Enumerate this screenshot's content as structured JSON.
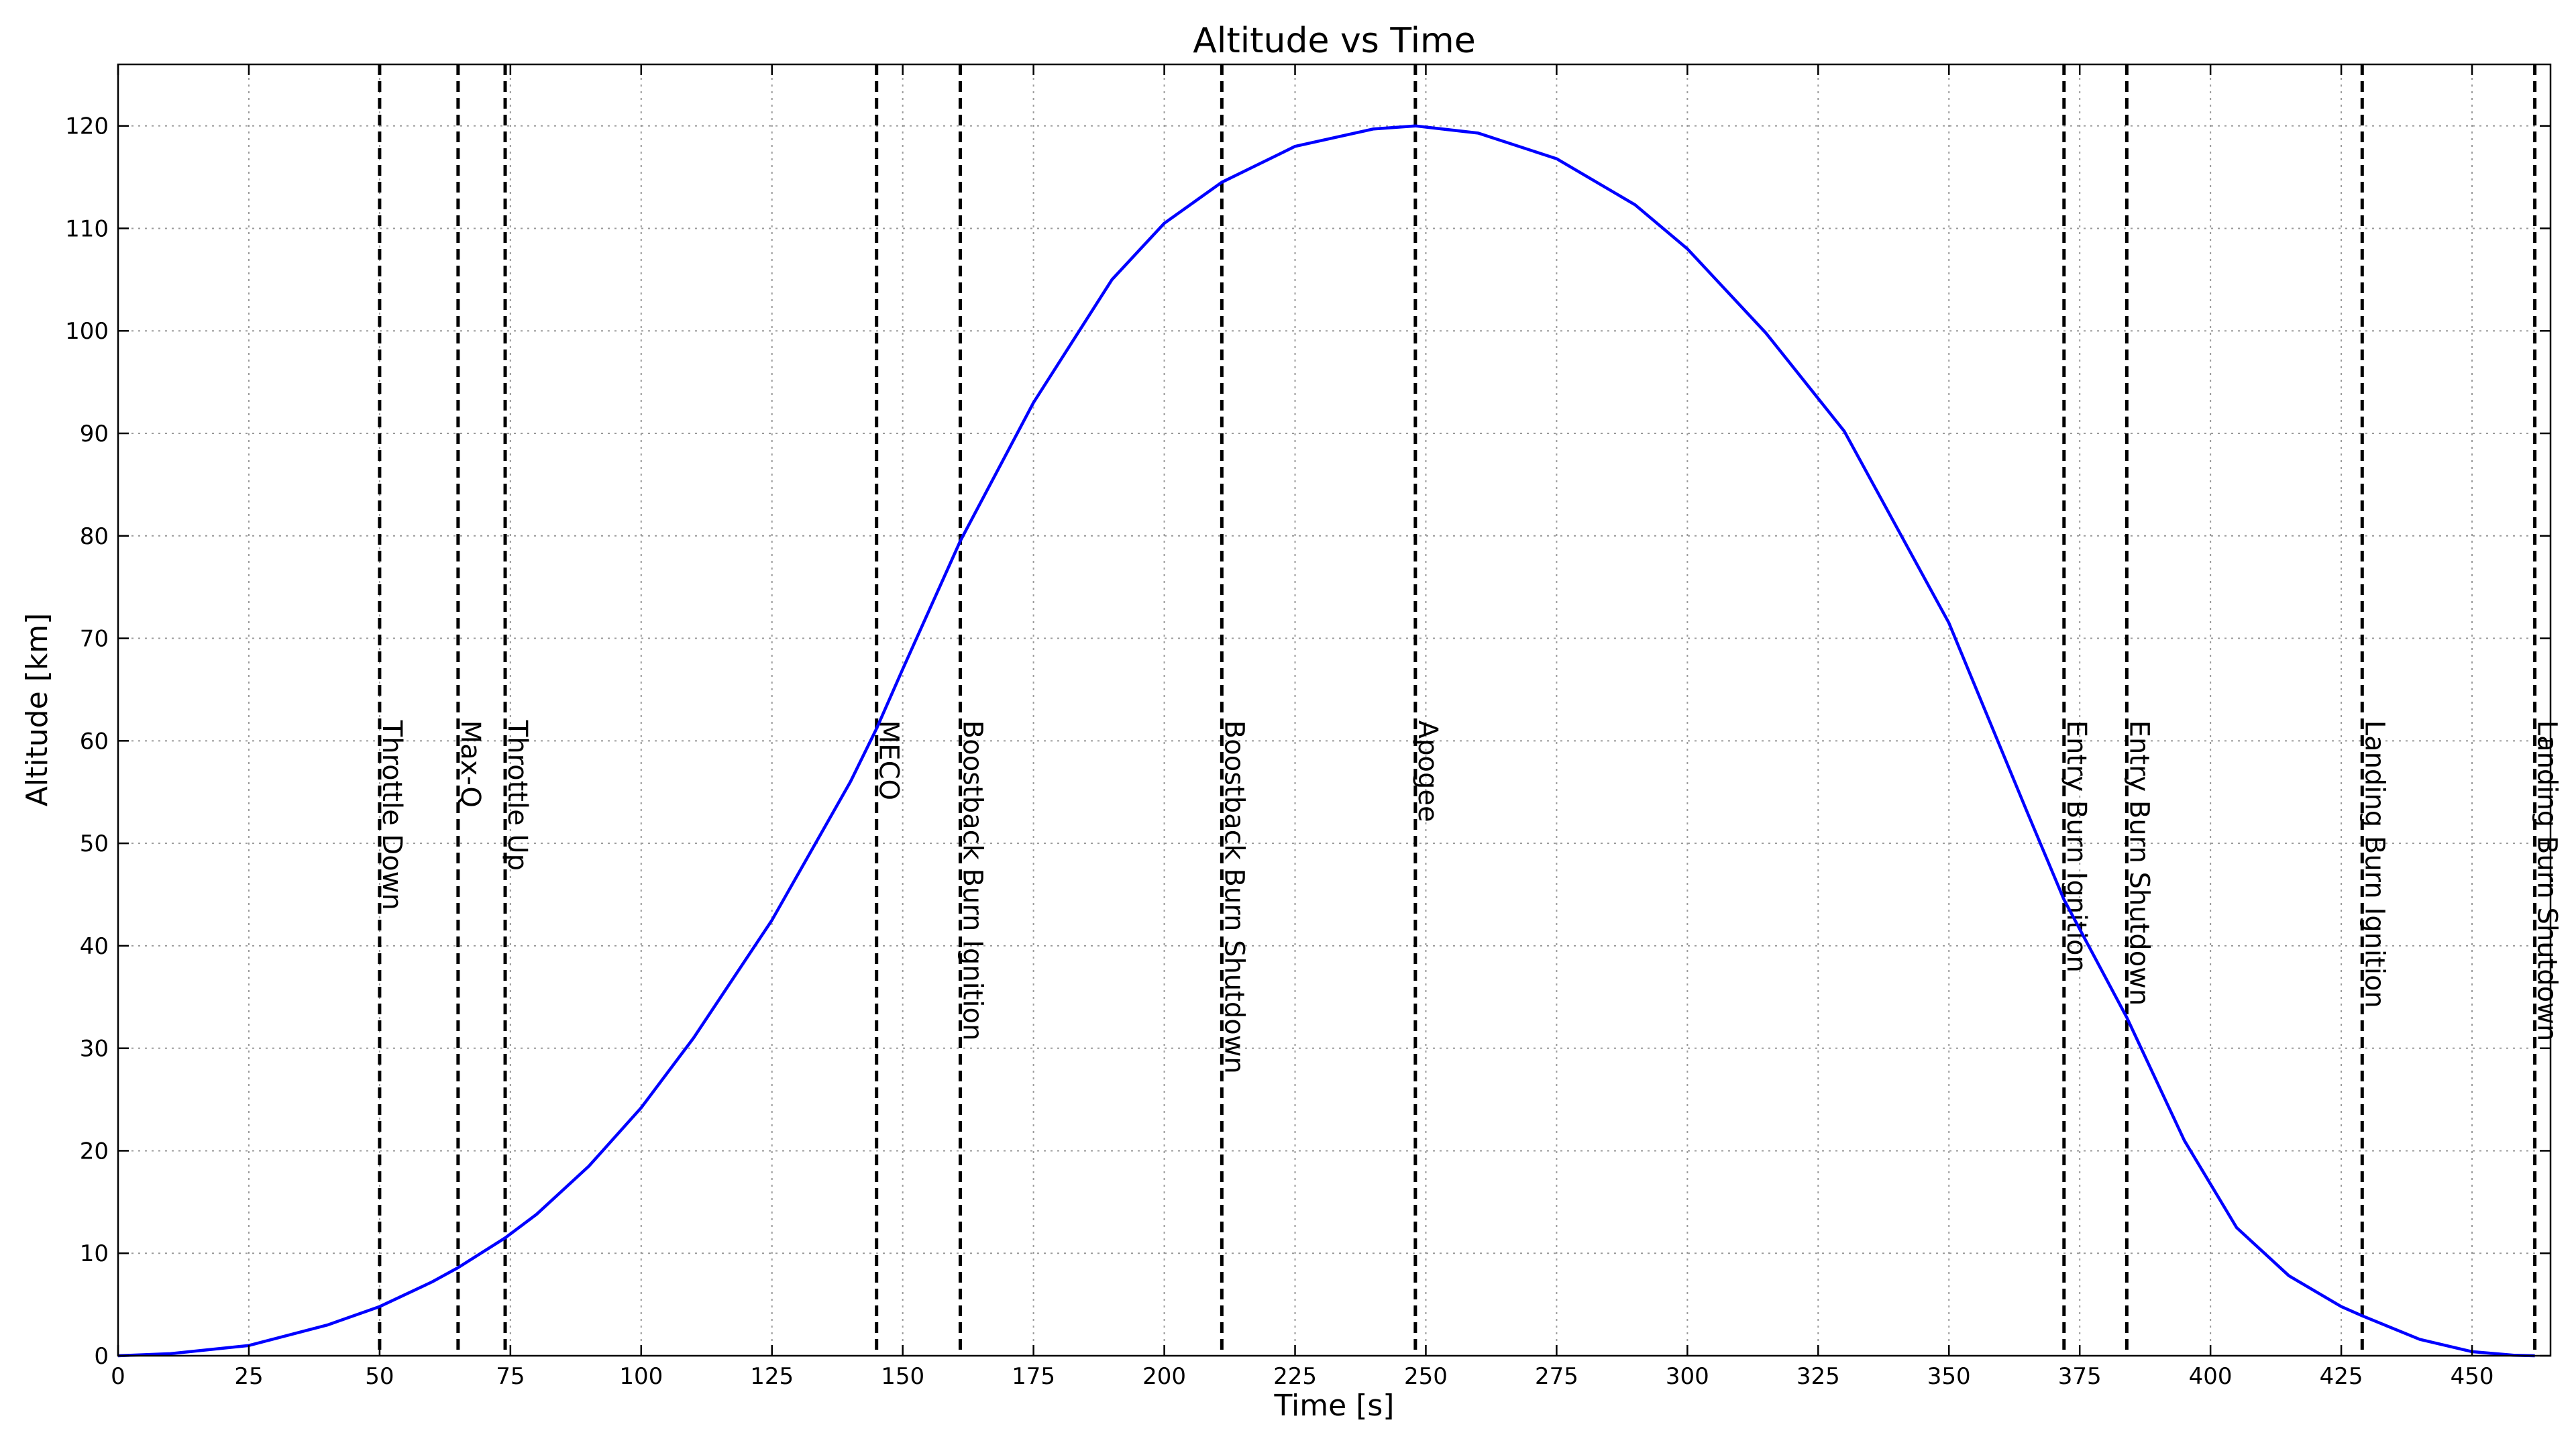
{
  "chart_data": {
    "type": "line",
    "title": "Altitude vs Time",
    "xlabel": "Time [s]",
    "ylabel": "Altitude [km]",
    "xlim": [
      0,
      465
    ],
    "ylim": [
      0,
      126
    ],
    "xticks": [
      0,
      25,
      50,
      75,
      100,
      125,
      150,
      175,
      200,
      225,
      250,
      275,
      300,
      325,
      350,
      375,
      400,
      425,
      450
    ],
    "yticks": [
      0,
      10,
      20,
      30,
      40,
      50,
      60,
      70,
      80,
      90,
      100,
      110,
      120
    ],
    "grid": true,
    "series": [
      {
        "color": "#0000ff",
        "x": [
          0,
          10,
          25,
          40,
          50,
          60,
          65,
          74,
          80,
          90,
          100,
          110,
          125,
          140,
          145,
          150,
          161,
          175,
          190,
          200,
          211,
          225,
          240,
          248,
          260,
          275,
          290,
          300,
          315,
          330,
          350,
          365,
          372,
          384,
          395,
          405,
          415,
          425,
          429,
          440,
          450,
          458,
          462
        ],
        "y": [
          0,
          0.2,
          1.0,
          3.0,
          4.8,
          7.2,
          8.6,
          11.5,
          13.8,
          18.5,
          24.2,
          31.0,
          42.5,
          56.0,
          61.2,
          67.0,
          79.5,
          93.0,
          105.0,
          110.5,
          114.5,
          118.0,
          119.7,
          120.0,
          119.3,
          116.8,
          112.3,
          108.0,
          99.8,
          90.2,
          71.5,
          53.0,
          44.5,
          33.0,
          21.0,
          12.5,
          7.8,
          4.8,
          3.9,
          1.6,
          0.4,
          0.05,
          0
        ]
      }
    ],
    "events": [
      {
        "label": "Throttle Down",
        "x": 50
      },
      {
        "label": "Max-Q",
        "x": 65
      },
      {
        "label": "Throttle Up",
        "x": 74
      },
      {
        "label": "MECO",
        "x": 145
      },
      {
        "label": "Boostback Burn Ignition",
        "x": 161
      },
      {
        "label": "Boostback Burn Shutdown",
        "x": 211
      },
      {
        "label": "Apogee",
        "x": 248
      },
      {
        "label": "Entry Burn Ignition",
        "x": 372
      },
      {
        "label": "Entry Burn Shutdown",
        "x": 384
      },
      {
        "label": "Landing Burn Ignition",
        "x": 429
      },
      {
        "label": "Landing Burn Shutdown",
        "x": 462
      }
    ],
    "event_label_y": 62
  }
}
